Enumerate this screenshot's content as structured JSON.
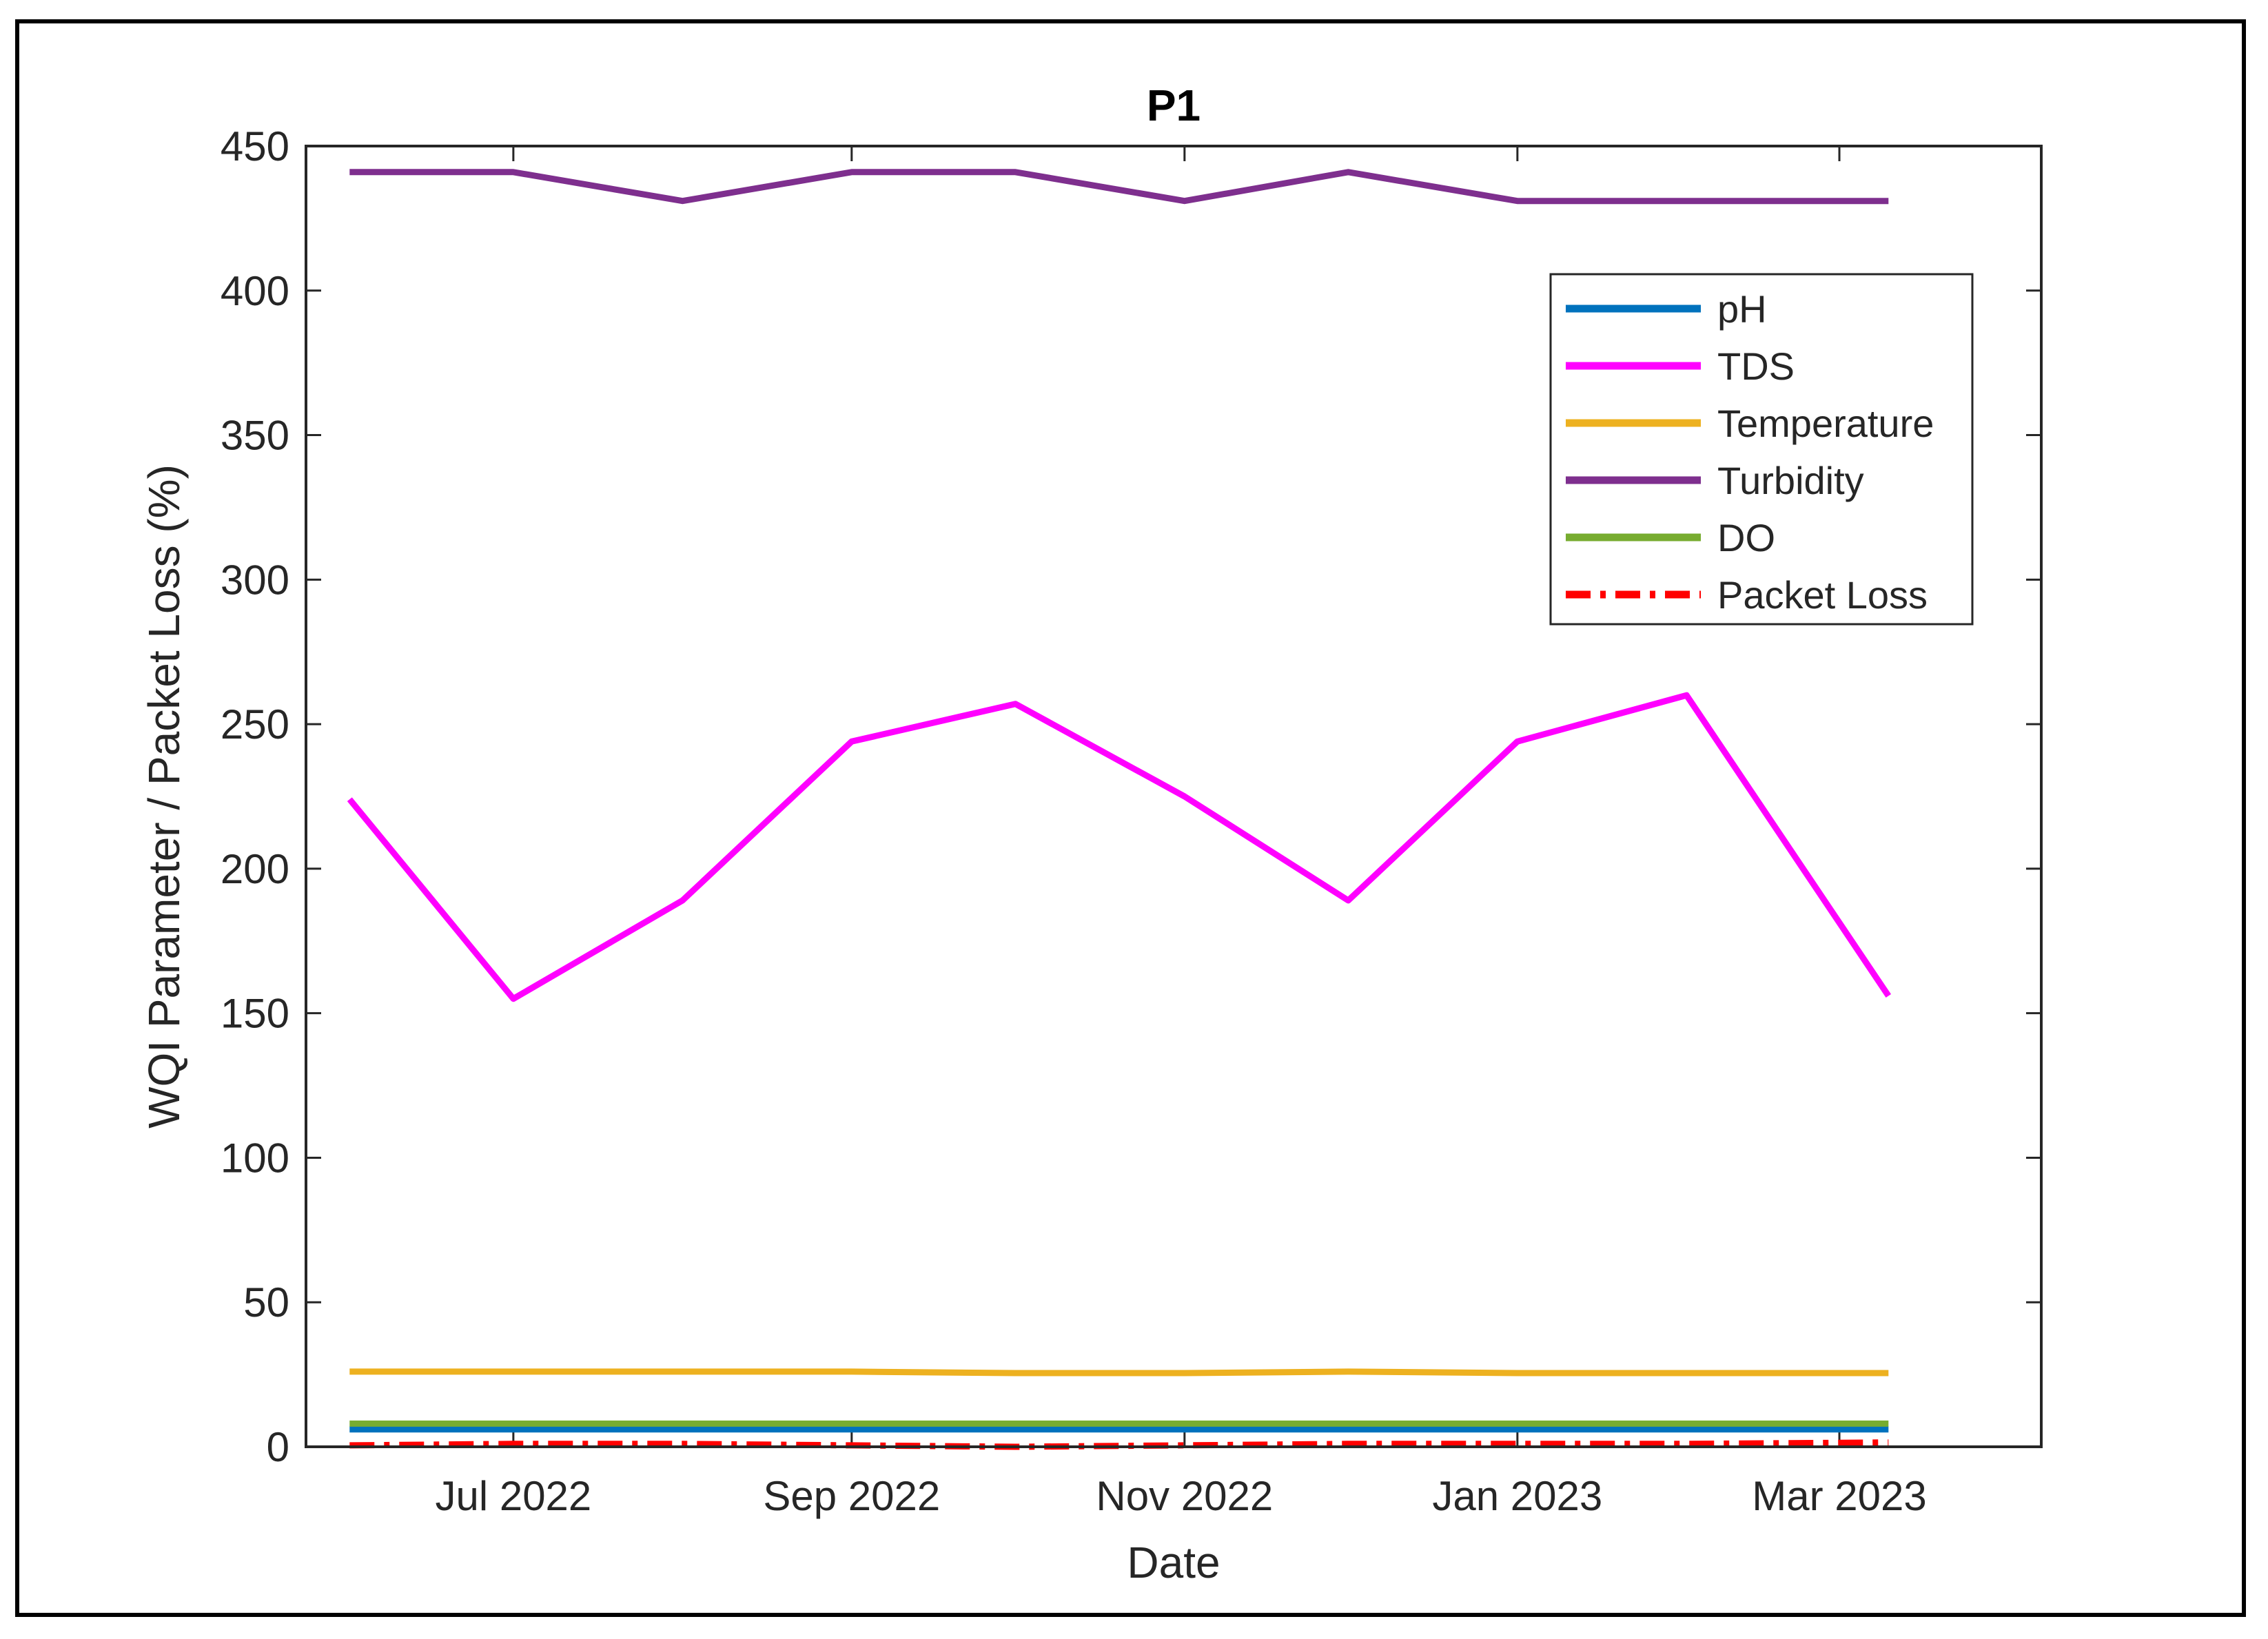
{
  "chart_data": {
    "type": "line",
    "title": "P1",
    "xlabel": "Date",
    "ylabel": "WQI Parameter / Packet Loss (%)",
    "ylim": [
      0,
      450
    ],
    "yticks": [
      0,
      50,
      100,
      150,
      200,
      250,
      300,
      350,
      400,
      450
    ],
    "xlim": [
      "2022-05-24",
      "2023-04-07"
    ],
    "xticks": [
      {
        "date": "2022-07-01",
        "label": "Jul 2022"
      },
      {
        "date": "2022-09-01",
        "label": "Sep 2022"
      },
      {
        "date": "2022-11-01",
        "label": "Nov 2022"
      },
      {
        "date": "2023-01-01",
        "label": "Jan 2023"
      },
      {
        "date": "2023-03-01",
        "label": "Mar 2023"
      }
    ],
    "grid": false,
    "legend_position": "top-right",
    "x": [
      "2022-06-01",
      "2022-07-01",
      "2022-08-01",
      "2022-09-01",
      "2022-10-01",
      "2022-11-01",
      "2022-12-01",
      "2023-01-01",
      "2023-02-01",
      "2023-03-10"
    ],
    "series": [
      {
        "name": "pH",
        "color": "#0072BD",
        "dash": "solid",
        "values": [
          6,
          6,
          6,
          6,
          6,
          6,
          6,
          6,
          6,
          6
        ]
      },
      {
        "name": "TDS",
        "color": "#FF00FF",
        "dash": "solid",
        "values": [
          224,
          155,
          189,
          244,
          257,
          225,
          189,
          244,
          260,
          156
        ]
      },
      {
        "name": "Temperature",
        "color": "#EDB120",
        "dash": "solid",
        "values": [
          26,
          26,
          26,
          26,
          25.5,
          25.5,
          26,
          25.5,
          25.5,
          25.5
        ]
      },
      {
        "name": "Turbidity",
        "color": "#7E2F8E",
        "dash": "solid",
        "values": [
          441,
          441,
          431,
          441,
          441,
          431,
          441,
          431,
          431,
          431
        ]
      },
      {
        "name": "DO",
        "color": "#77AC30",
        "dash": "solid",
        "values": [
          8,
          8,
          8,
          8,
          8,
          8,
          8,
          8,
          8,
          8
        ]
      },
      {
        "name": "Packet Loss",
        "color": "#FF0000",
        "dash": "dashdot",
        "values": [
          0.5,
          1,
          1,
          0.5,
          0,
          0.5,
          1,
          1,
          1,
          1.5
        ]
      }
    ]
  }
}
